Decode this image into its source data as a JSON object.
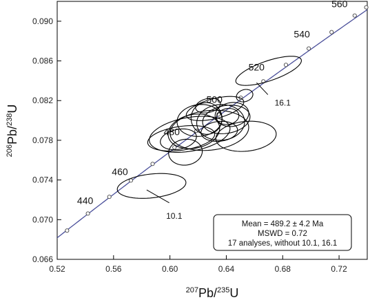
{
  "chart_data": {
    "type": "scatter",
    "subtype": "U-Pb concordia diagram with error ellipses",
    "xlabel": {
      "sup": "207",
      "main": "Pb/",
      "sup2": "235",
      "tail": "U"
    },
    "ylabel": {
      "sup": "206",
      "main": "Pb/",
      "sup2": "238",
      "tail": "U"
    },
    "xlim": [
      0.52,
      0.74
    ],
    "ylim": [
      0.066,
      0.092
    ],
    "x_ticks": [
      "0.52",
      "0.56",
      "0.60",
      "0.64",
      "0.68",
      "0.72"
    ],
    "y_ticks": [
      "0.066",
      "0.070",
      "0.074",
      "0.078",
      "0.082",
      "0.086",
      "0.090"
    ],
    "grid": false,
    "concordia_color": "#4a4f9a",
    "ellipse_color": "#000000",
    "concordia_ages": [
      {
        "age": 440,
        "x": 0.5418,
        "y": 0.07062,
        "label": "440",
        "labeled": true
      },
      {
        "age": 460,
        "x": 0.5723,
        "y": 0.07395,
        "label": "460",
        "labeled": true
      },
      {
        "age": 480,
        "x": 0.6032,
        "y": 0.07728,
        "label": "480",
        "labeled": true
      },
      {
        "age": 500,
        "x": 0.6345,
        "y": 0.08061,
        "label": "500",
        "labeled": true
      },
      {
        "age": 520,
        "x": 0.6663,
        "y": 0.08394,
        "label": "520",
        "labeled": true
      },
      {
        "age": 540,
        "x": 0.6985,
        "y": 0.08725,
        "label": "540",
        "labeled": true
      },
      {
        "age": 560,
        "x": 0.7311,
        "y": 0.09057,
        "label": "560",
        "labeled": true
      },
      {
        "age": 430,
        "x": 0.527,
        "y": 0.0689,
        "labeled": false
      },
      {
        "age": 450,
        "x": 0.557,
        "y": 0.0723,
        "labeled": false
      },
      {
        "age": 470,
        "x": 0.5877,
        "y": 0.07562,
        "labeled": false
      },
      {
        "age": 490,
        "x": 0.6188,
        "y": 0.07895,
        "labeled": false
      },
      {
        "age": 510,
        "x": 0.6503,
        "y": 0.08228,
        "labeled": false
      },
      {
        "age": 530,
        "x": 0.6823,
        "y": 0.0856,
        "labeled": false
      },
      {
        "age": 550,
        "x": 0.7147,
        "y": 0.0889,
        "labeled": false
      },
      {
        "age": 565,
        "x": 0.7393,
        "y": 0.0914,
        "labeled": false
      }
    ],
    "ellipses": [
      {
        "id": "10.1",
        "cx": 0.587,
        "cy": 0.0734,
        "rx": 0.0245,
        "ry": 0.0012,
        "angle": 0.11
      },
      {
        "id": "16.1",
        "cx": 0.67,
        "cy": 0.085,
        "rx": 0.0245,
        "ry": 0.001,
        "angle": 0.33
      },
      {
        "id": "a",
        "cx": 0.653,
        "cy": 0.0825,
        "rx": 0.006,
        "ry": 0.0006,
        "angle": 0.3
      },
      {
        "id": "b",
        "cx": 0.614,
        "cy": 0.0786,
        "rx": 0.029,
        "ry": 0.0017,
        "angle": 0.17
      },
      {
        "id": "c",
        "cx": 0.628,
        "cy": 0.079,
        "rx": 0.028,
        "ry": 0.002,
        "angle": 0.1
      },
      {
        "id": "d",
        "cx": 0.608,
        "cy": 0.0782,
        "rx": 0.024,
        "ry": 0.0012,
        "angle": 0.14
      },
      {
        "id": "e",
        "cx": 0.621,
        "cy": 0.08,
        "rx": 0.016,
        "ry": 0.0016,
        "angle": 0.12
      },
      {
        "id": "f",
        "cx": 0.617,
        "cy": 0.0789,
        "rx": 0.0185,
        "ry": 0.0017,
        "angle": 0.2
      },
      {
        "id": "g",
        "cx": 0.64,
        "cy": 0.0801,
        "rx": 0.017,
        "ry": 0.0014,
        "angle": 0.17
      },
      {
        "id": "h",
        "cx": 0.654,
        "cy": 0.0784,
        "rx": 0.0215,
        "ry": 0.0015,
        "angle": 0.1
      },
      {
        "id": "i",
        "cx": 0.632,
        "cy": 0.0812,
        "rx": 0.021,
        "ry": 0.001,
        "angle": 0.25
      },
      {
        "id": "j",
        "cx": 0.636,
        "cy": 0.0798,
        "rx": 0.017,
        "ry": 0.0018,
        "angle": 0.06
      },
      {
        "id": "k",
        "cx": 0.611,
        "cy": 0.0768,
        "rx": 0.012,
        "ry": 0.0013,
        "angle": 0.14
      },
      {
        "id": "l",
        "cx": 0.626,
        "cy": 0.0802,
        "rx": 0.011,
        "ry": 0.0016,
        "angle": 0.2
      },
      {
        "id": "m",
        "cx": 0.644,
        "cy": 0.0806,
        "rx": 0.012,
        "ry": 0.0012,
        "angle": 0.14
      },
      {
        "id": "n",
        "cx": 0.635,
        "cy": 0.0789,
        "rx": 0.013,
        "ry": 0.001,
        "angle": 0.1
      },
      {
        "id": "o",
        "cx": 0.606,
        "cy": 0.0781,
        "rx": 0.013,
        "ry": 0.001,
        "angle": 0.2
      },
      {
        "id": "p",
        "cx": 0.627,
        "cy": 0.0815,
        "rx": 0.009,
        "ry": 0.0007,
        "angle": 0.23
      },
      {
        "id": "q",
        "cx": 0.641,
        "cy": 0.0804,
        "rx": 0.008,
        "ry": 0.0008,
        "angle": 0.16
      }
    ],
    "annotations": [
      {
        "text": "10.1",
        "x": 0.603,
        "y": 0.0701,
        "leader_from": [
          0.5995,
          0.0717
        ],
        "leader_to": [
          0.5835,
          0.073
        ]
      },
      {
        "text": "16.1",
        "x": 0.68,
        "y": 0.0815,
        "leader_from": [
          0.6695,
          0.0826
        ],
        "leader_to": [
          0.6615,
          0.0838
        ]
      }
    ],
    "stats": {
      "line1": "Mean = 489.2 ± 4.2 Ma",
      "line2": "MSWD = 0.72",
      "line3": "17 analyses, without 10.1, 16.1"
    }
  }
}
